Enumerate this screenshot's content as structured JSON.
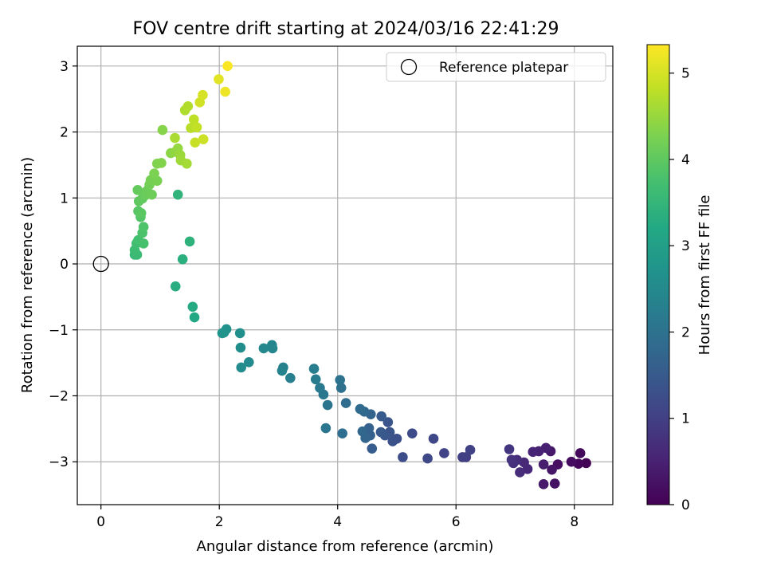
{
  "chart_data": {
    "type": "scatter",
    "title": "FOV centre drift starting at 2024/03/16 22:41:29",
    "xlabel": "Angular distance from reference (arcmin)",
    "ylabel": "Rotation from reference (arcmin)",
    "xlim": [
      -0.4,
      8.65
    ],
    "ylim": [
      -3.65,
      3.3
    ],
    "xticks": [
      0,
      2,
      4,
      6,
      8
    ],
    "yticks": [
      -3,
      -2,
      -1,
      0,
      1,
      2,
      3
    ],
    "grid": true,
    "legend": {
      "placement": "upper right",
      "entries": [
        {
          "label": "Reference platepar",
          "marker": "open-circle",
          "x": 0,
          "y": 0
        }
      ]
    },
    "colorbar": {
      "label": "Hours from first FF file",
      "colormap": "viridis",
      "range": [
        0,
        5.33
      ],
      "ticks": [
        0,
        1,
        2,
        3,
        4,
        5
      ]
    },
    "series": [
      {
        "points": [
          {
            "x": 8.2,
            "y": -3.02,
            "c": 0.02
          },
          {
            "x": 8.07,
            "y": -3.03,
            "c": 0.08
          },
          {
            "x": 8.1,
            "y": -2.87,
            "c": 0.12
          },
          {
            "x": 7.95,
            "y": -3.0,
            "c": 0.17
          },
          {
            "x": 7.72,
            "y": -3.04,
            "c": 0.22
          },
          {
            "x": 7.67,
            "y": -3.33,
            "c": 0.26
          },
          {
            "x": 7.62,
            "y": -3.12,
            "c": 0.3
          },
          {
            "x": 7.6,
            "y": -2.84,
            "c": 0.34
          },
          {
            "x": 7.48,
            "y": -3.34,
            "c": 0.38
          },
          {
            "x": 7.48,
            "y": -3.04,
            "c": 0.42
          },
          {
            "x": 7.52,
            "y": -2.79,
            "c": 0.46
          },
          {
            "x": 7.4,
            "y": -2.84,
            "c": 0.5
          },
          {
            "x": 7.3,
            "y": -2.85,
            "c": 0.54
          },
          {
            "x": 7.21,
            "y": -3.11,
            "c": 0.58
          },
          {
            "x": 7.15,
            "y": -3.01,
            "c": 0.62
          },
          {
            "x": 7.08,
            "y": -3.16,
            "c": 0.66
          },
          {
            "x": 7.03,
            "y": -2.97,
            "c": 0.7
          },
          {
            "x": 6.97,
            "y": -3.02,
            "c": 0.74
          },
          {
            "x": 6.94,
            "y": -2.97,
            "c": 0.78
          },
          {
            "x": 6.9,
            "y": -2.81,
            "c": 0.82
          },
          {
            "x": 6.17,
            "y": -2.93,
            "c": 0.96
          },
          {
            "x": 6.11,
            "y": -2.93,
            "c": 1.0
          },
          {
            "x": 6.24,
            "y": -2.82,
            "c": 1.04
          },
          {
            "x": 5.8,
            "y": -2.87,
            "c": 1.08
          },
          {
            "x": 5.62,
            "y": -2.65,
            "c": 1.12
          },
          {
            "x": 5.52,
            "y": -2.95,
            "c": 1.16
          },
          {
            "x": 5.26,
            "y": -2.57,
            "c": 1.2
          },
          {
            "x": 5.1,
            "y": -2.93,
            "c": 1.24
          },
          {
            "x": 5.0,
            "y": -2.65,
            "c": 1.28
          },
          {
            "x": 4.93,
            "y": -2.69,
            "c": 1.32
          },
          {
            "x": 4.88,
            "y": -2.55,
            "c": 1.36
          },
          {
            "x": 4.85,
            "y": -2.4,
            "c": 1.4
          },
          {
            "x": 4.8,
            "y": -2.6,
            "c": 1.44
          },
          {
            "x": 4.73,
            "y": -2.55,
            "c": 1.48
          },
          {
            "x": 4.74,
            "y": -2.31,
            "c": 1.52
          },
          {
            "x": 4.58,
            "y": -2.8,
            "c": 1.56
          },
          {
            "x": 4.55,
            "y": -2.6,
            "c": 1.6
          },
          {
            "x": 4.53,
            "y": -2.49,
            "c": 1.64
          },
          {
            "x": 4.56,
            "y": -2.28,
            "c": 1.68
          },
          {
            "x": 4.47,
            "y": -2.64,
            "c": 1.72
          },
          {
            "x": 4.42,
            "y": -2.54,
            "c": 1.76
          },
          {
            "x": 4.45,
            "y": -2.24,
            "c": 1.8
          },
          {
            "x": 4.38,
            "y": -2.2,
            "c": 1.84
          },
          {
            "x": 4.14,
            "y": -2.11,
            "c": 1.88
          },
          {
            "x": 4.08,
            "y": -2.57,
            "c": 1.92
          },
          {
            "x": 4.06,
            "y": -1.88,
            "c": 1.96
          },
          {
            "x": 4.04,
            "y": -1.76,
            "c": 2.0
          },
          {
            "x": 3.83,
            "y": -2.14,
            "c": 2.04
          },
          {
            "x": 3.8,
            "y": -2.49,
            "c": 2.08
          },
          {
            "x": 3.76,
            "y": -1.98,
            "c": 2.12
          },
          {
            "x": 3.7,
            "y": -1.88,
            "c": 2.16
          },
          {
            "x": 3.63,
            "y": -1.75,
            "c": 2.2
          },
          {
            "x": 3.6,
            "y": -1.59,
            "c": 2.24
          },
          {
            "x": 3.2,
            "y": -1.73,
            "c": 2.28
          },
          {
            "x": 3.08,
            "y": -1.57,
            "c": 2.32
          },
          {
            "x": 3.06,
            "y": -1.62,
            "c": 2.36
          },
          {
            "x": 2.89,
            "y": -1.23,
            "c": 2.4
          },
          {
            "x": 2.9,
            "y": -1.28,
            "c": 2.44
          },
          {
            "x": 2.75,
            "y": -1.28,
            "c": 2.48
          },
          {
            "x": 2.5,
            "y": -1.49,
            "c": 2.52
          },
          {
            "x": 2.37,
            "y": -1.57,
            "c": 2.56
          },
          {
            "x": 2.36,
            "y": -1.27,
            "c": 2.6
          },
          {
            "x": 2.35,
            "y": -1.05,
            "c": 2.64
          },
          {
            "x": 2.12,
            "y": -0.99,
            "c": 2.68
          },
          {
            "x": 2.08,
            "y": -1.04,
            "c": 2.72
          },
          {
            "x": 2.05,
            "y": -1.05,
            "c": 2.76
          },
          {
            "x": 1.58,
            "y": -0.81,
            "c": 3.2
          },
          {
            "x": 1.55,
            "y": -0.65,
            "c": 3.25
          },
          {
            "x": 1.26,
            "y": -0.34,
            "c": 3.3
          },
          {
            "x": 1.38,
            "y": 0.07,
            "c": 3.35
          },
          {
            "x": 1.5,
            "y": 0.34,
            "c": 3.4
          },
          {
            "x": 1.3,
            "y": 1.05,
            "c": 3.45
          },
          {
            "x": 0.57,
            "y": 0.14,
            "c": 3.55
          },
          {
            "x": 0.61,
            "y": 0.14,
            "c": 3.6
          },
          {
            "x": 0.57,
            "y": 0.21,
            "c": 3.64
          },
          {
            "x": 0.6,
            "y": 0.31,
            "c": 3.68
          },
          {
            "x": 0.63,
            "y": 0.36,
            "c": 3.72
          },
          {
            "x": 0.72,
            "y": 0.31,
            "c": 3.76
          },
          {
            "x": 0.7,
            "y": 0.47,
            "c": 3.8
          },
          {
            "x": 0.72,
            "y": 0.56,
            "c": 3.84
          },
          {
            "x": 0.67,
            "y": 0.71,
            "c": 3.88
          },
          {
            "x": 0.63,
            "y": 0.8,
            "c": 3.92
          },
          {
            "x": 0.68,
            "y": 0.77,
            "c": 3.96
          },
          {
            "x": 0.64,
            "y": 0.95,
            "c": 4.0
          },
          {
            "x": 0.7,
            "y": 0.99,
            "c": 4.03
          },
          {
            "x": 0.62,
            "y": 1.12,
            "c": 4.06
          },
          {
            "x": 0.75,
            "y": 1.04,
            "c": 4.09
          },
          {
            "x": 0.78,
            "y": 1.11,
            "c": 4.12
          },
          {
            "x": 0.86,
            "y": 1.05,
            "c": 4.15
          },
          {
            "x": 0.82,
            "y": 1.2,
            "c": 4.18
          },
          {
            "x": 0.84,
            "y": 1.27,
            "c": 4.21
          },
          {
            "x": 0.95,
            "y": 1.26,
            "c": 4.24
          },
          {
            "x": 0.9,
            "y": 1.37,
            "c": 4.27
          },
          {
            "x": 0.95,
            "y": 1.52,
            "c": 4.3
          },
          {
            "x": 1.02,
            "y": 1.53,
            "c": 4.33
          },
          {
            "x": 1.04,
            "y": 2.03,
            "c": 4.36
          },
          {
            "x": 1.18,
            "y": 1.68,
            "c": 4.4
          },
          {
            "x": 1.26,
            "y": 1.7,
            "c": 4.44
          },
          {
            "x": 1.3,
            "y": 1.75,
            "c": 4.48
          },
          {
            "x": 1.34,
            "y": 1.65,
            "c": 4.52
          },
          {
            "x": 1.35,
            "y": 1.57,
            "c": 4.56
          },
          {
            "x": 1.45,
            "y": 1.52,
            "c": 4.6
          },
          {
            "x": 1.25,
            "y": 1.91,
            "c": 4.64
          },
          {
            "x": 1.42,
            "y": 2.33,
            "c": 4.68
          },
          {
            "x": 1.47,
            "y": 2.39,
            "c": 4.72
          },
          {
            "x": 1.52,
            "y": 2.06,
            "c": 4.76
          },
          {
            "x": 1.57,
            "y": 2.19,
            "c": 4.8
          },
          {
            "x": 1.62,
            "y": 2.07,
            "c": 4.84
          },
          {
            "x": 1.59,
            "y": 1.84,
            "c": 4.88
          },
          {
            "x": 1.73,
            "y": 1.89,
            "c": 4.92
          },
          {
            "x": 1.67,
            "y": 2.45,
            "c": 4.96
          },
          {
            "x": 1.72,
            "y": 2.56,
            "c": 5.0
          },
          {
            "x": 1.99,
            "y": 2.8,
            "c": 5.1
          },
          {
            "x": 2.1,
            "y": 2.61,
            "c": 5.2
          },
          {
            "x": 2.14,
            "y": 3.0,
            "c": 5.3
          }
        ]
      }
    ]
  }
}
